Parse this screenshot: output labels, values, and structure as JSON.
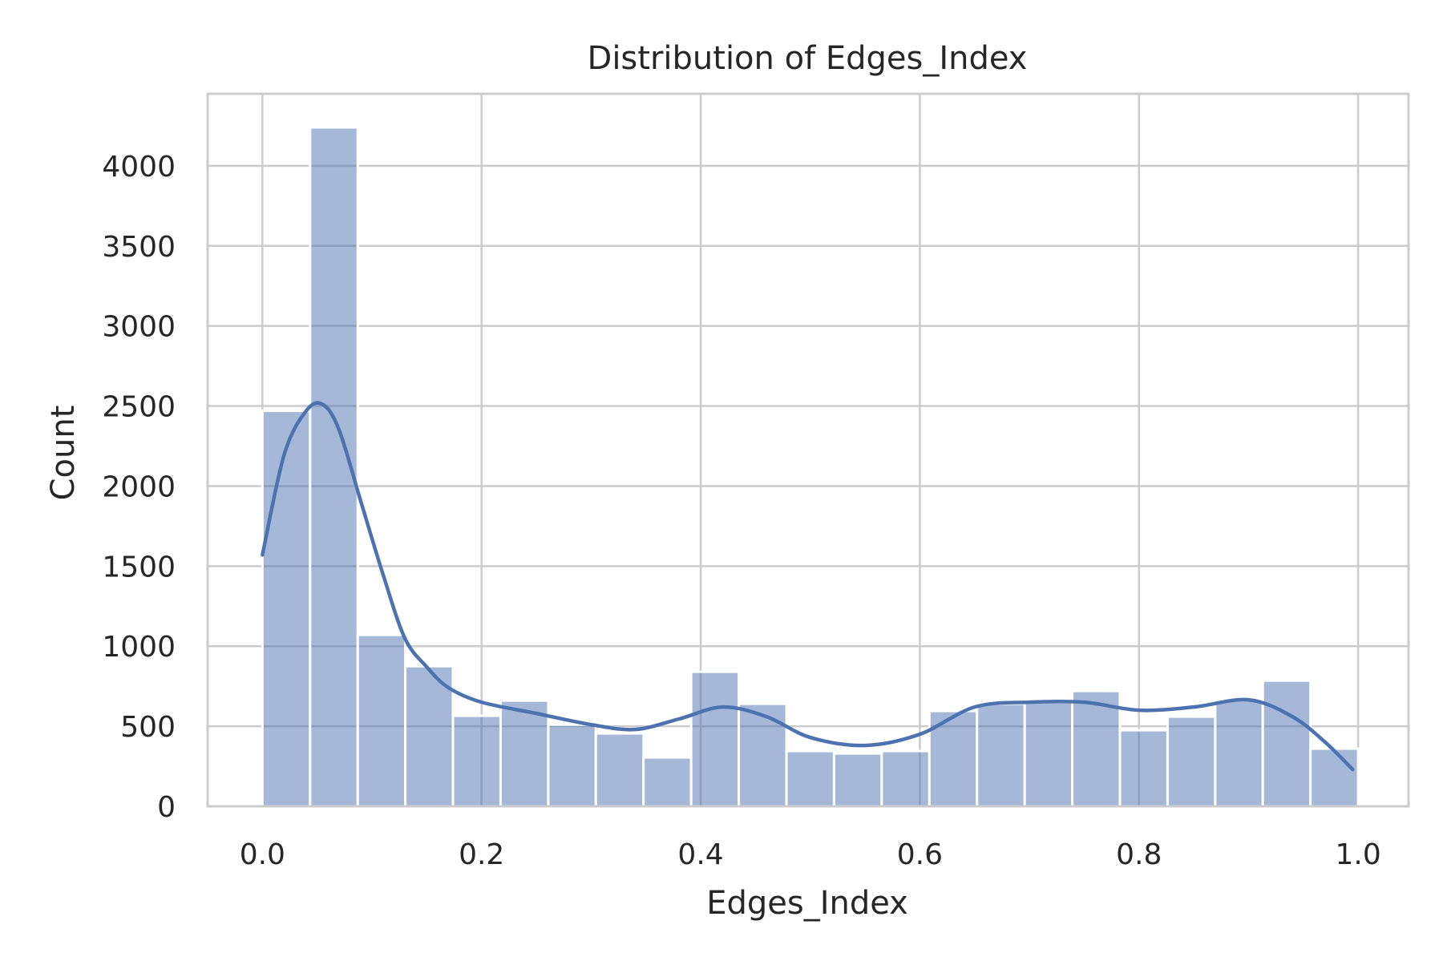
{
  "chart_data": {
    "type": "bar",
    "subtype": "histogram-with-kde",
    "title": "Distribution of Edges_Index",
    "xlabel": "Edges_Index",
    "ylabel": "Count",
    "xlim": [
      -0.05,
      1.046
    ],
    "ylim": [
      0,
      4450
    ],
    "x_ticks": [
      "0.0",
      "0.2",
      "0.4",
      "0.6",
      "0.8",
      "1.0"
    ],
    "x_tick_values": [
      0.0,
      0.2,
      0.4,
      0.6,
      0.8,
      1.0
    ],
    "y_ticks": [
      "0",
      "500",
      "1000",
      "1500",
      "2000",
      "2500",
      "3000",
      "3500",
      "4000"
    ],
    "y_tick_values": [
      0,
      500,
      1000,
      1500,
      2000,
      2500,
      3000,
      3500,
      4000
    ],
    "grid": true,
    "bin_edges": [
      0.0,
      0.0435,
      0.087,
      0.1304,
      0.1739,
      0.2174,
      0.2609,
      0.3043,
      0.3478,
      0.3913,
      0.4348,
      0.4783,
      0.5217,
      0.5652,
      0.6087,
      0.6522,
      0.6957,
      0.7391,
      0.7826,
      0.8261,
      0.8696,
      0.913,
      0.9565,
      1.0
    ],
    "values": [
      2470,
      4240,
      1070,
      875,
      565,
      660,
      510,
      455,
      305,
      840,
      640,
      345,
      330,
      345,
      595,
      640,
      650,
      720,
      475,
      560,
      665,
      785,
      360
    ],
    "kde": {
      "x": [
        0.0,
        0.02,
        0.04,
        0.055,
        0.07,
        0.09,
        0.11,
        0.13,
        0.15,
        0.17,
        0.2,
        0.25,
        0.3,
        0.34,
        0.38,
        0.42,
        0.46,
        0.5,
        0.55,
        0.6,
        0.65,
        0.7,
        0.75,
        0.8,
        0.85,
        0.9,
        0.94,
        0.97,
        0.995
      ],
      "y": [
        1570,
        2200,
        2470,
        2510,
        2350,
        1900,
        1450,
        1050,
        870,
        740,
        650,
        580,
        510,
        480,
        545,
        620,
        560,
        430,
        380,
        450,
        620,
        650,
        650,
        600,
        620,
        665,
        560,
        400,
        230
      ]
    },
    "colors": {
      "bar_fill": "#4c72b0",
      "bar_opacity": 0.5,
      "kde_line": "#4c72b0",
      "grid": "#cccccc",
      "spine": "#cccccc"
    }
  }
}
